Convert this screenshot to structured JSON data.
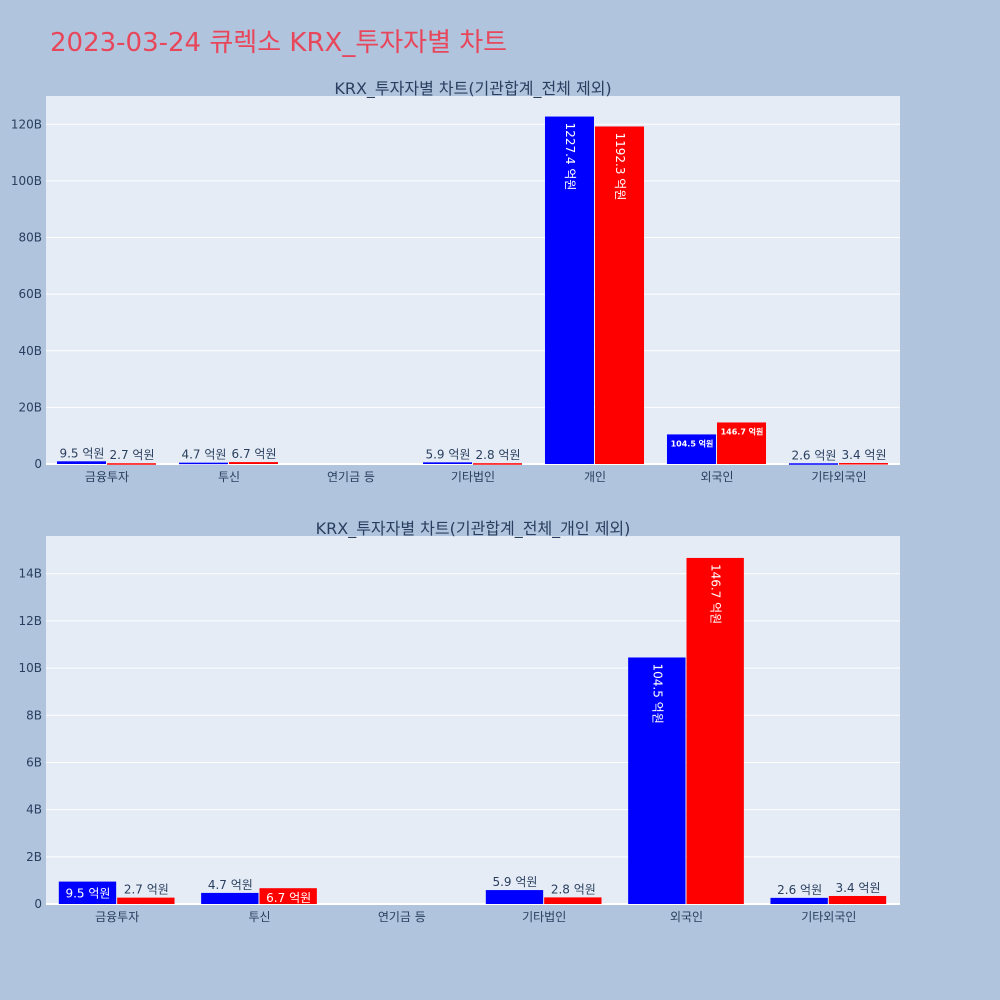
{
  "page": {
    "title": "2023-03-24 큐렉소 KRX_투자자별 차트"
  },
  "chart_data": [
    {
      "type": "bar",
      "title": "KRX_투자자별 차트(기관합계_전체 제외)",
      "categories": [
        "금융투자",
        "투신",
        "연기금 등",
        "기타법인",
        "개인",
        "외국인",
        "기타외국인"
      ],
      "series": [
        {
          "color": "#0000ff",
          "values": [
            0.95,
            0.47,
            0,
            0.59,
            122.74,
            10.45,
            0.26
          ],
          "labels": [
            "9.5 억원",
            "4.7 억원",
            "",
            "5.9 억원",
            "1227.4 억원",
            "104.5 억원",
            "2.6 억원"
          ]
        },
        {
          "color": "#ff0000",
          "values": [
            0.27,
            0.67,
            0,
            0.28,
            119.23,
            14.67,
            0.34
          ],
          "labels": [
            "2.7 억원",
            "6.7 억원",
            "",
            "2.8 억원",
            "1192.3 억원",
            "146.7 억원",
            "3.4 억원"
          ]
        }
      ],
      "yticks": [
        "0",
        "20B",
        "40B",
        "60B",
        "80B",
        "100B",
        "120B"
      ],
      "ytick_values": [
        0,
        20,
        40,
        60,
        80,
        100,
        120
      ],
      "ylim": [
        0,
        130
      ],
      "xlabel": "",
      "ylabel": ""
    },
    {
      "type": "bar",
      "title": "KRX_투자자별 차트(기관합계_전체_개인 제외)",
      "categories": [
        "금융투자",
        "투신",
        "연기금 등",
        "기타법인",
        "외국인",
        "기타외국인"
      ],
      "series": [
        {
          "color": "#0000ff",
          "values": [
            0.95,
            0.47,
            0,
            0.59,
            10.45,
            0.26
          ],
          "labels": [
            "9.5 억원",
            "4.7 억원",
            "",
            "5.9 억원",
            "104.5 억원",
            "2.6 억원"
          ]
        },
        {
          "color": "#ff0000",
          "values": [
            0.27,
            0.67,
            0,
            0.28,
            14.67,
            0.34
          ],
          "labels": [
            "2.7 억원",
            "6.7 억원",
            "",
            "2.8 억원",
            "146.7 억원",
            "3.4 억원"
          ]
        }
      ],
      "yticks": [
        "0",
        "2B",
        "4B",
        "6B",
        "8B",
        "10B",
        "12B",
        "14B"
      ],
      "ytick_values": [
        0,
        2,
        4,
        6,
        8,
        10,
        12,
        14
      ],
      "ylim": [
        0,
        15.6
      ],
      "xlabel": "",
      "ylabel": ""
    }
  ]
}
